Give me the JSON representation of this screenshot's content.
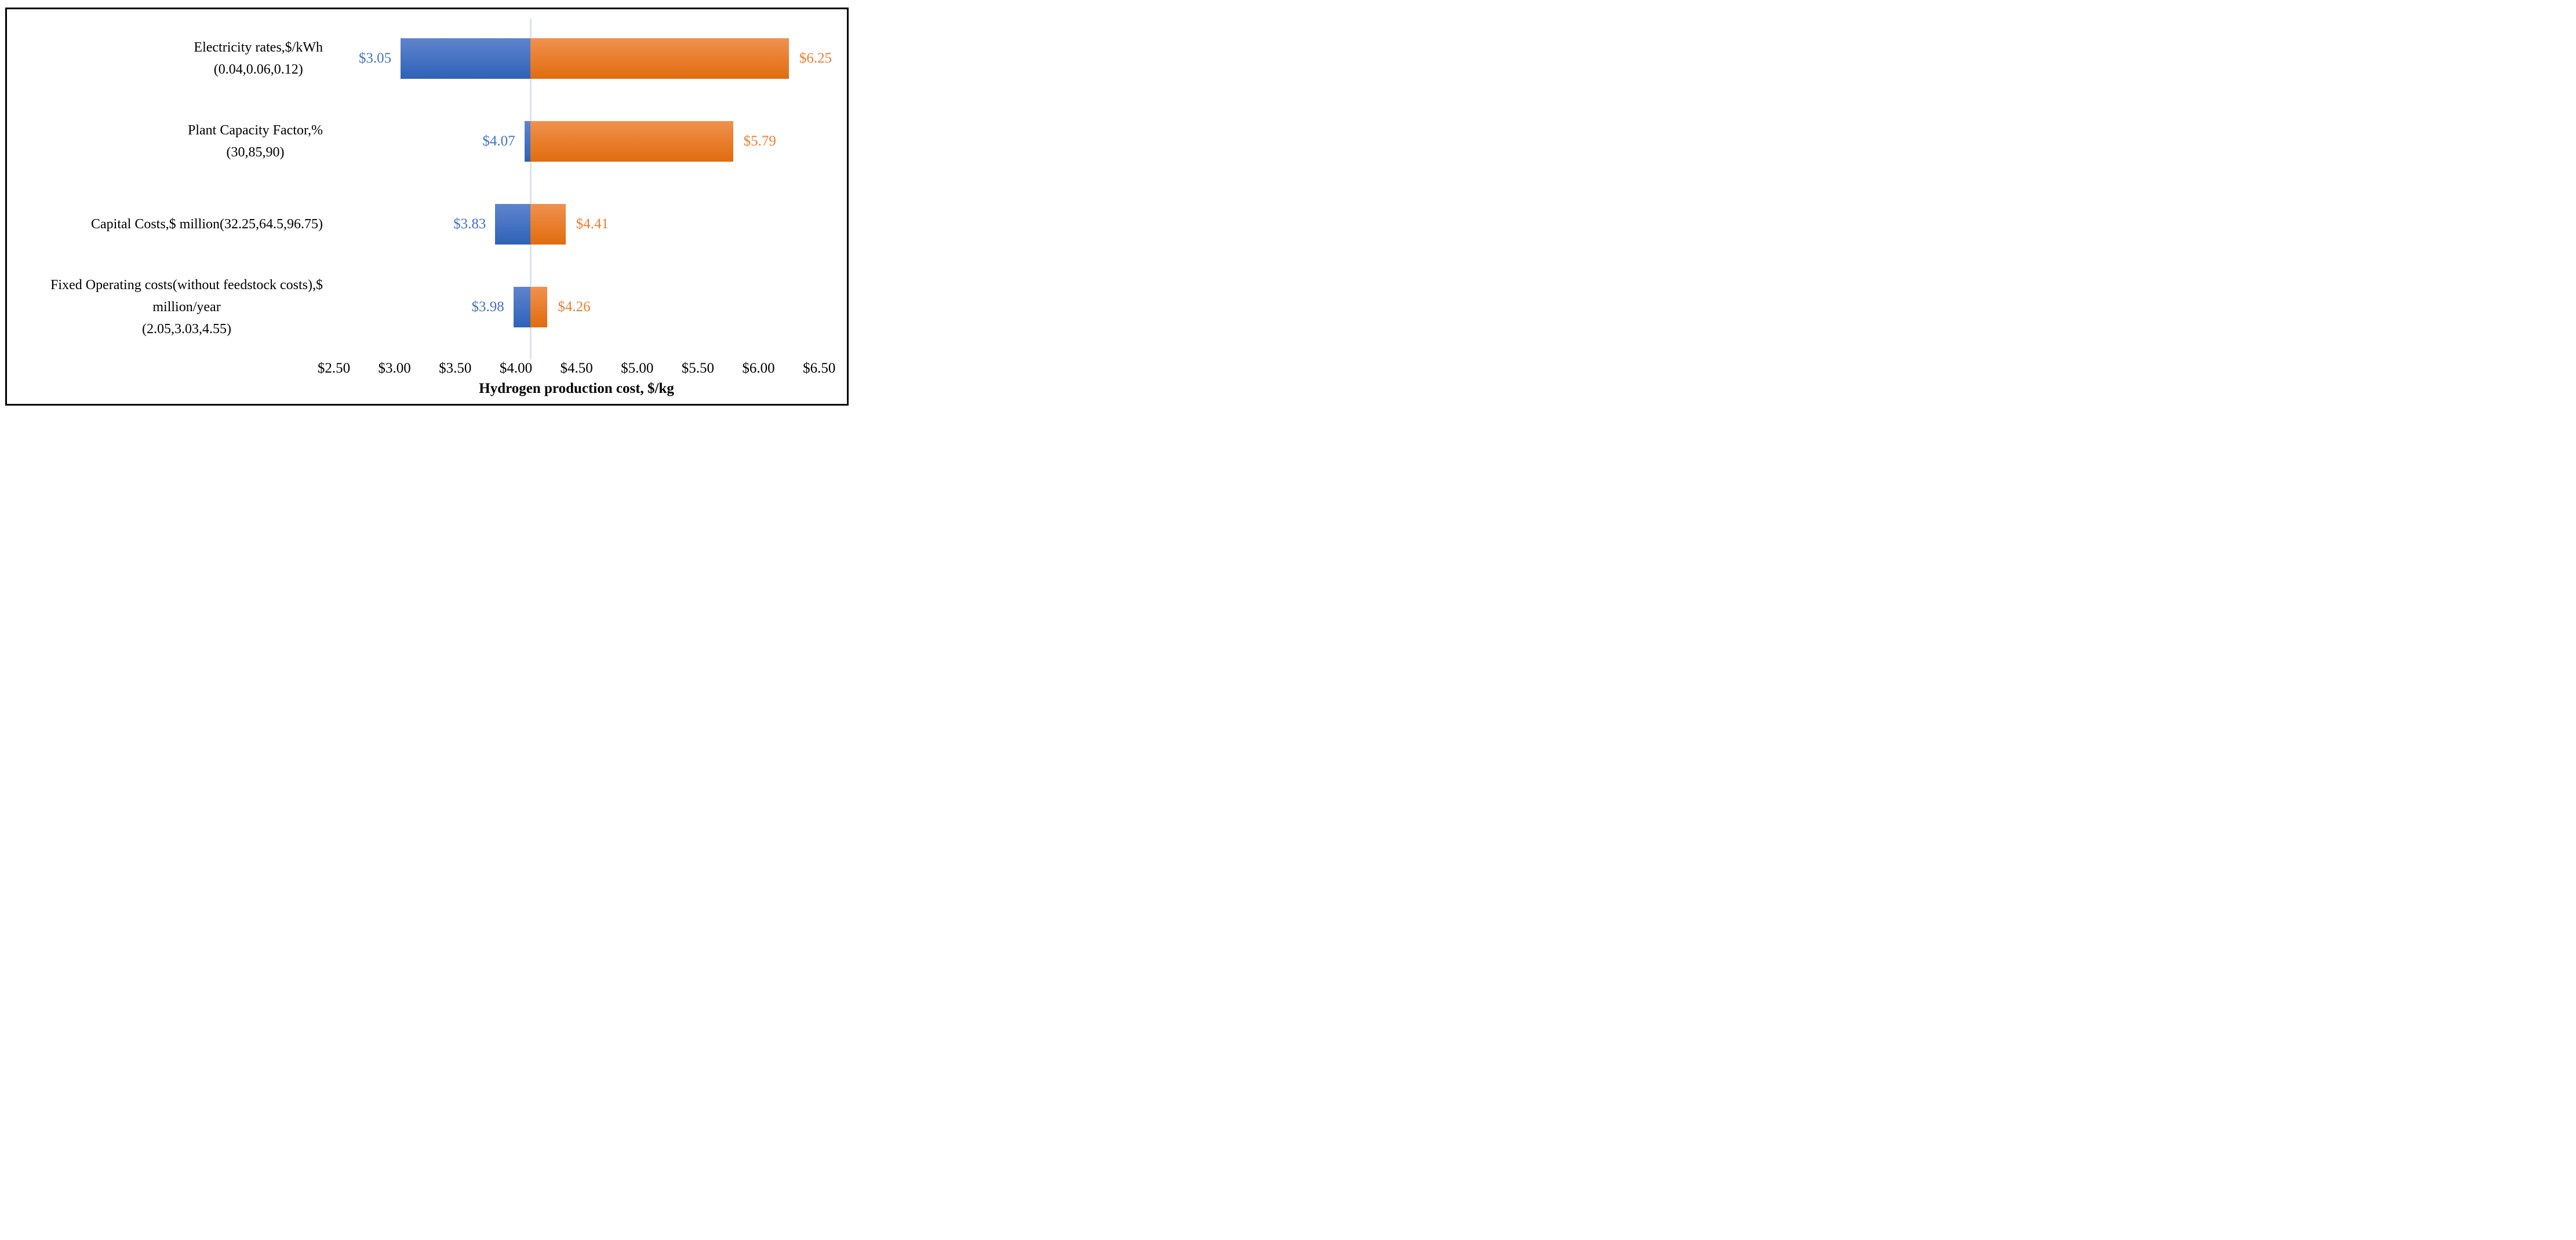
{
  "chart_data": {
    "type": "bar",
    "subtype": "tornado-horizontal",
    "title": "",
    "xlabel": "Hydrogen production cost, $/kg",
    "ylabel": "",
    "xlim": [
      2.25,
      6.75
    ],
    "base_value": 4.12,
    "grid": "single vertical base-value line only",
    "legend": "none",
    "x_ticks": [
      {
        "value": 2.5,
        "label": "$2.50"
      },
      {
        "value": 3.0,
        "label": "$3.00"
      },
      {
        "value": 3.5,
        "label": "$3.50"
      },
      {
        "value": 4.0,
        "label": "$4.00"
      },
      {
        "value": 4.5,
        "label": "$4.50"
      },
      {
        "value": 5.0,
        "label": "$5.00"
      },
      {
        "value": 5.5,
        "label": "$5.50"
      },
      {
        "value": 6.0,
        "label": "$6.00"
      },
      {
        "value": 6.5,
        "label": "$6.50"
      }
    ],
    "categories": [
      "Electricity rates,$/kWh (0.04,0.06,0.12)",
      "Plant Capacity Factor,% (30,85,90)",
      "Capital Costs,$ million(32.25,64.5,96.75)",
      "Fixed Operating costs(without feedstock costs),$ million/year (2.05,3.03,4.55)"
    ],
    "rows": [
      {
        "label_lines": [
          "Electricity rates,$/kWh",
          "(0.04,0.06,0.12)"
        ],
        "low": 3.05,
        "high": 6.25,
        "low_label": "$3.05",
        "high_label": "$6.25"
      },
      {
        "label_lines": [
          "Plant Capacity Factor,%",
          "(30,85,90)"
        ],
        "low": 4.07,
        "high": 5.79,
        "low_label": "$4.07",
        "high_label": "$5.79"
      },
      {
        "label_lines": [
          "Capital Costs,$ million(32.25,64.5,96.75)"
        ],
        "low": 3.83,
        "high": 4.41,
        "low_label": "$3.83",
        "high_label": "$4.41"
      },
      {
        "label_lines": [
          "Fixed Operating costs(without feedstock costs),$",
          "million/year",
          "(2.05,3.03,4.55)"
        ],
        "low": 3.98,
        "high": 4.26,
        "low_label": "$3.98",
        "high_label": "$4.26"
      }
    ],
    "series": [
      {
        "name": "low-case-bar",
        "color": "#3c68bd"
      },
      {
        "name": "high-case-bar",
        "color": "#ea7d28"
      }
    ],
    "colors": {
      "low_text": "#4472c4",
      "high_text": "#ed7d31",
      "base_line": "#dde3ec",
      "border": "#000000",
      "background": "#ffffff"
    }
  }
}
